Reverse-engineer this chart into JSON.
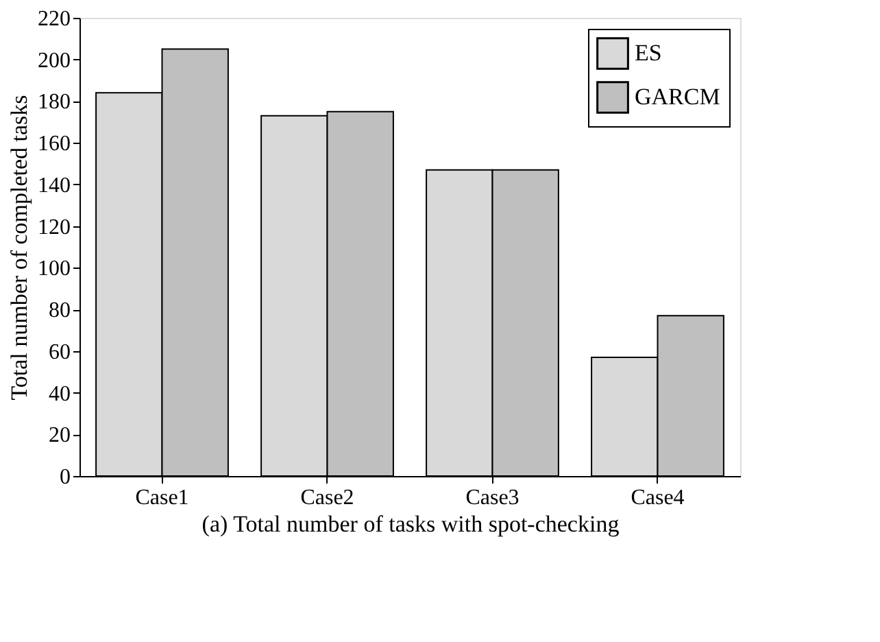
{
  "chart_data": {
    "type": "bar",
    "xlabel": "(a) Total number of tasks with spot-checking",
    "ylabel": "Total number of completed tasks",
    "categories": [
      "Case1",
      "Case2",
      "Case3",
      "Case4"
    ],
    "series": [
      {
        "name": "ES",
        "color": "#d9d9d9",
        "values": [
          184,
          173,
          147,
          57
        ]
      },
      {
        "name": "GARCM",
        "color": "#bfbfbf",
        "values": [
          205,
          175,
          147,
          77
        ]
      }
    ],
    "ylim": [
      0,
      220
    ],
    "yticks": [
      0,
      20,
      40,
      60,
      80,
      100,
      120,
      140,
      160,
      180,
      200,
      220
    ],
    "grid": false,
    "legend": "top right"
  }
}
